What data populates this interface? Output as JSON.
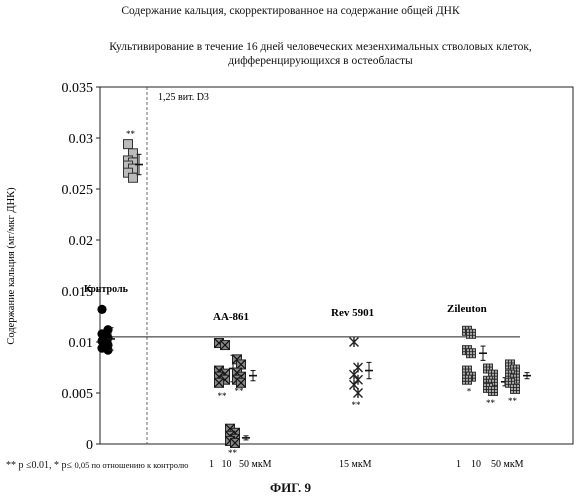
{
  "header": {
    "title": "Содержание кальция, скорректированное на содержание общей ДНК",
    "subtitle_line1": "Культивирование в течение 16 дней человеческих мезенхимальных стволовых клеток,",
    "subtitle_line2": "дифференцирующихся в остеобласты"
  },
  "footnote": {
    "part1": "** p ≤0.01, * p≤ ",
    "part2": "0,05 по отношению к контролю"
  },
  "figure_label": "ФИГ. 9",
  "chart_data": {
    "type": "scatter",
    "ylabel": "Содержание кальция (мг/мкг ДНК)",
    "ylim": [
      0,
      0.035
    ],
    "yticks": [
      "0",
      "0.005",
      "0.01",
      "0.015",
      "0.02",
      "0.025",
      "0.03",
      "0.035"
    ],
    "ytick_values": [
      0,
      0.005,
      0.01,
      0.015,
      0.02,
      0.025,
      0.03,
      0.035
    ],
    "control_line": 0.0105,
    "grid": false,
    "annotations": {
      "vit_d3": "1,25 вит. D3",
      "control": "Контроль",
      "aa861": "AA-861",
      "rev5901": "Rev 5901",
      "zileuton": "Zileuton",
      "dose_aa861": "1   10   50 мкМ",
      "dose_rev5901": "15 мкМ",
      "dose_zileuton": "1    10    50 мкМ"
    },
    "groups": [
      {
        "name": "Контроль",
        "marker": "circle",
        "values": [
          0.0132,
          0.0112,
          0.0108,
          0.0104,
          0.0101,
          0.0097,
          0.0094,
          0.0092
        ],
        "mean": 0.0103,
        "sd": 0.0011,
        "sig": ""
      },
      {
        "name": "1,25 вит. D3",
        "marker": "square",
        "values": [
          0.0294,
          0.0285,
          0.0278,
          0.0276,
          0.0273,
          0.027,
          0.0266,
          0.0261
        ],
        "mean": 0.0274,
        "sd": 0.001,
        "sig": "**"
      },
      {
        "name": "AA-861 1",
        "marker": "xsquare",
        "values": [
          0.0099,
          0.0097,
          0.0072,
          0.0069,
          0.0066,
          0.0063,
          0.006
        ],
        "mean": 0.0074,
        "sd": 0.0013,
        "sig": "**"
      },
      {
        "name": "AA-861 10",
        "marker": "xsquare",
        "values": [
          0.0083,
          0.0078,
          0.007,
          0.0066,
          0.0063,
          0.006
        ],
        "mean": 0.0067,
        "sd": 0.0005,
        "sig": "**"
      },
      {
        "name": "AA-861 50",
        "marker": "xsquare",
        "values": [
          0.0015,
          0.0011,
          0.0008,
          0.0005,
          0.0003,
          0.0001
        ],
        "mean": 0.0006,
        "sd": 0.0002,
        "sig": "**"
      },
      {
        "name": "Rev 5901 15",
        "marker": "asterisk",
        "values": [
          0.01,
          0.0075,
          0.0068,
          0.0063,
          0.0058,
          0.005
        ],
        "mean": 0.0072,
        "sd": 0.0008,
        "sig": "**"
      },
      {
        "name": "Zileuton 1",
        "marker": "hash",
        "values": [
          0.0111,
          0.0108,
          0.0092,
          0.0089,
          0.0072,
          0.0066,
          0.0063
        ],
        "mean": 0.0089,
        "sd": 0.0007,
        "sig": "*"
      },
      {
        "name": "Zileuton 10",
        "marker": "hash",
        "values": [
          0.0074,
          0.0068,
          0.0062,
          0.0059,
          0.0055,
          0.0052
        ],
        "mean": 0.0061,
        "sd": 0.0004,
        "sig": "**"
      },
      {
        "name": "Zileuton 50",
        "marker": "hash",
        "values": [
          0.0078,
          0.0073,
          0.0068,
          0.0064,
          0.006,
          0.0054
        ],
        "mean": 0.0067,
        "sd": 0.0003,
        "sig": "**"
      }
    ]
  }
}
